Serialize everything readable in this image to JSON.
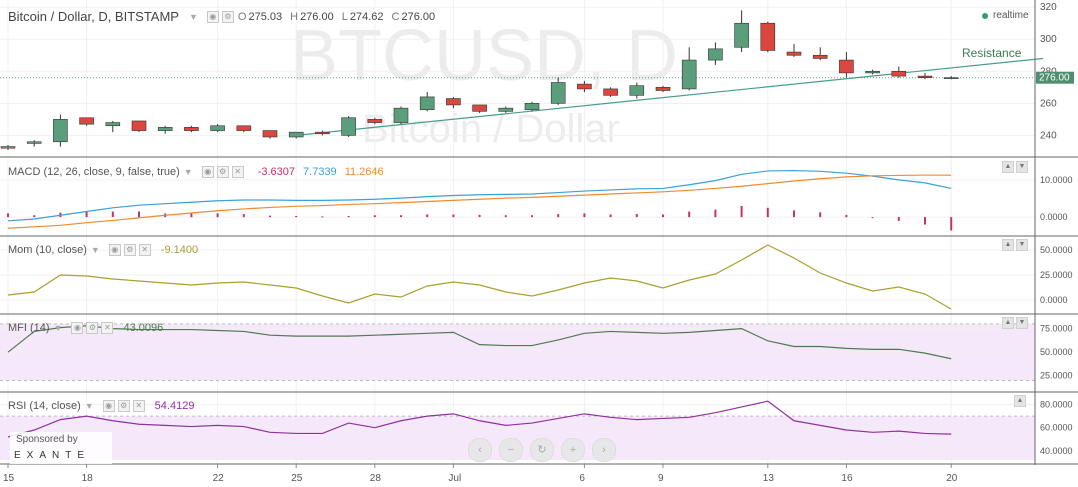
{
  "header": {
    "symbol": "Bitcoin / Dollar, D, BITSTAMP",
    "ohlc": [
      {
        "label": "O",
        "value": "275.03"
      },
      {
        "label": "H",
        "value": "276.00"
      },
      {
        "label": "L",
        "value": "274.62"
      },
      {
        "label": "C",
        "value": "276.00"
      }
    ],
    "realtime_label": "realtime"
  },
  "watermark": {
    "line1": "BTCUSD, D",
    "line2": "Bitcoin / Dollar"
  },
  "sponsor": {
    "line1": "Sponsored by",
    "line2": "EXANTE"
  },
  "nav_buttons": [
    "‹",
    "−",
    "↻",
    "+",
    "›"
  ],
  "colors": {
    "up": "#5b9e7c",
    "down": "#d9473f",
    "trendline": "#4a9c8e",
    "macd": "#3aa0d8",
    "signal": "#f08a30",
    "hist": "#c8306a",
    "mom": "#a8a030",
    "mfi": "#4f7a4f",
    "rsi": "#9030a0",
    "band_fill": "#f6e8fb"
  },
  "chart_data": [
    {
      "type": "candlestick",
      "title": "Bitcoin / Dollar, D, BITSTAMP",
      "x_ticks": [
        "15",
        "18",
        "22",
        "25",
        "28",
        "Jul",
        "6",
        "9",
        "13",
        "16",
        "20"
      ],
      "y_ticks": [
        240,
        260,
        280,
        300,
        320
      ],
      "ylim": [
        229,
        322
      ],
      "last_price": "276.00",
      "candles": [
        {
          "o": 232,
          "h": 234,
          "l": 231,
          "c": 233
        },
        {
          "o": 235,
          "h": 237,
          "l": 233,
          "c": 236
        },
        {
          "o": 236,
          "h": 253,
          "l": 233,
          "c": 250
        },
        {
          "o": 251,
          "h": 251,
          "l": 246,
          "c": 247
        },
        {
          "o": 246,
          "h": 249,
          "l": 242,
          "c": 248
        },
        {
          "o": 249,
          "h": 249,
          "l": 242,
          "c": 243
        },
        {
          "o": 243,
          "h": 246,
          "l": 241,
          "c": 245
        },
        {
          "o": 245,
          "h": 246,
          "l": 242,
          "c": 243
        },
        {
          "o": 243,
          "h": 247,
          "l": 242,
          "c": 246
        },
        {
          "o": 246,
          "h": 246,
          "l": 242,
          "c": 243
        },
        {
          "o": 243,
          "h": 243,
          "l": 238,
          "c": 239
        },
        {
          "o": 239,
          "h": 242,
          "l": 238,
          "c": 242
        },
        {
          "o": 242,
          "h": 243,
          "l": 240,
          "c": 241
        },
        {
          "o": 240,
          "h": 252,
          "l": 239,
          "c": 251
        },
        {
          "o": 250,
          "h": 251,
          "l": 247,
          "c": 248
        },
        {
          "o": 248,
          "h": 258,
          "l": 247,
          "c": 257
        },
        {
          "o": 256,
          "h": 267,
          "l": 255,
          "c": 264
        },
        {
          "o": 263,
          "h": 264,
          "l": 257,
          "c": 259
        },
        {
          "o": 259,
          "h": 259,
          "l": 254,
          "c": 255
        },
        {
          "o": 255,
          "h": 258,
          "l": 254,
          "c": 257
        },
        {
          "o": 256,
          "h": 261,
          "l": 255,
          "c": 260
        },
        {
          "o": 260,
          "h": 276,
          "l": 259,
          "c": 273
        },
        {
          "o": 272,
          "h": 274,
          "l": 267,
          "c": 269
        },
        {
          "o": 269,
          "h": 270,
          "l": 264,
          "c": 265
        },
        {
          "o": 265,
          "h": 273,
          "l": 263,
          "c": 271
        },
        {
          "o": 270,
          "h": 271,
          "l": 267,
          "c": 268
        },
        {
          "o": 269,
          "h": 295,
          "l": 268,
          "c": 287
        },
        {
          "o": 287,
          "h": 298,
          "l": 284,
          "c": 294
        },
        {
          "o": 295,
          "h": 318,
          "l": 292,
          "c": 310
        },
        {
          "o": 310,
          "h": 311,
          "l": 292,
          "c": 293
        },
        {
          "o": 292,
          "h": 297,
          "l": 289,
          "c": 290
        },
        {
          "o": 290,
          "h": 295,
          "l": 287,
          "c": 288
        },
        {
          "o": 287,
          "h": 292,
          "l": 276,
          "c": 279
        },
        {
          "o": 279,
          "h": 281,
          "l": 278,
          "c": 280
        },
        {
          "o": 280,
          "h": 283,
          "l": 276,
          "c": 277
        },
        {
          "o": 277,
          "h": 279,
          "l": 275,
          "c": 276
        },
        {
          "o": 276,
          "h": 277,
          "l": 275,
          "c": 276
        }
      ],
      "trendline": {
        "label": "Resistance",
        "from": {
          "index": 11,
          "value": 240
        },
        "to": {
          "index": 39.5,
          "value": 288
        }
      }
    },
    {
      "type": "line",
      "title": "MACD (12, 26, close, 9, false, true)",
      "values_text": [
        "-3.6307",
        "7.7339",
        "11.2646"
      ],
      "y_ticks": [
        0,
        10
      ],
      "y_tick_labels": [
        "0.0000",
        "10.0000"
      ],
      "ylim": [
        -4,
        14
      ],
      "series": [
        {
          "values": [
            -1,
            -0.5,
            0.5,
            1.5,
            2.5,
            3.2,
            3.6,
            4,
            4.4,
            4.6,
            4.6,
            4.5,
            4.5,
            4.6,
            4.8,
            5.1,
            5.5,
            5.8,
            6,
            6.1,
            6.2,
            6.6,
            7,
            7.3,
            7.6,
            7.7,
            8.7,
            9.8,
            11.5,
            12.4,
            12.5,
            12.3,
            11.8,
            11,
            10,
            9.2,
            7.7
          ]
        },
        {
          "values": [
            -3,
            -2.6,
            -2.2,
            -1.5,
            -0.9,
            -0.2,
            0.5,
            1.1,
            1.7,
            2.2,
            2.6,
            2.9,
            3.1,
            3.4,
            3.6,
            3.9,
            4.2,
            4.5,
            4.8,
            5.1,
            5.3,
            5.6,
            5.9,
            6.2,
            6.5,
            6.8,
            7.2,
            7.7,
            8.3,
            9,
            9.7,
            10.3,
            10.8,
            11.1,
            11.2,
            11.3,
            11.2646
          ]
        }
      ],
      "histogram": [
        1,
        0.5,
        1.2,
        1.5,
        1.5,
        1.5,
        1,
        1,
        1,
        0.8,
        0.4,
        0.3,
        0.2,
        0.3,
        0.5,
        0.5,
        0.7,
        0.7,
        0.6,
        0.5,
        0.5,
        0.8,
        1,
        0.7,
        0.8,
        0.7,
        1.5,
        2,
        3,
        2.5,
        1.8,
        1.3,
        0.6,
        0,
        -1,
        -2,
        -3.6
      ]
    },
    {
      "type": "line",
      "title": "Mom (10, close)",
      "values_text": [
        "-9.1400"
      ],
      "y_ticks": [
        0,
        25,
        50
      ],
      "y_tick_labels": [
        "0.0000",
        "25.0000",
        "50.0000"
      ],
      "ylim": [
        -10,
        56
      ],
      "series": [
        {
          "values": [
            5,
            8,
            25,
            24,
            21,
            19,
            17,
            15,
            17,
            18,
            15,
            12,
            4,
            -3,
            6,
            3,
            14,
            18,
            15,
            8,
            4,
            10,
            17,
            22,
            19,
            12,
            20,
            26,
            40,
            55,
            42,
            27,
            17,
            9,
            13,
            6,
            -9.14
          ]
        }
      ]
    },
    {
      "type": "line",
      "title": "MFI (14)",
      "values_text": [
        "43.0096"
      ],
      "y_ticks": [
        25,
        50,
        75
      ],
      "y_tick_labels": [
        "25.0000",
        "50.0000",
        "75.0000"
      ],
      "ylim": [
        12,
        82
      ],
      "band": [
        20,
        80
      ],
      "series": [
        {
          "values": [
            50,
            72,
            76,
            78,
            75,
            74,
            74,
            74,
            73,
            72,
            68,
            67,
            67,
            67,
            68,
            69,
            70,
            71,
            58,
            57,
            57,
            63,
            70,
            72,
            71,
            70,
            71,
            73,
            75,
            62,
            56,
            56,
            54,
            53,
            53,
            49,
            43.0096
          ]
        }
      ]
    },
    {
      "type": "line",
      "title": "RSI (14, close)",
      "values_text": [
        "54.4129"
      ],
      "y_ticks": [
        40,
        60,
        80
      ],
      "y_tick_labels": [
        "40.0000",
        "60.0000",
        "80.0000"
      ],
      "ylim": [
        32,
        84
      ],
      "band": [
        30,
        70
      ],
      "series": [
        {
          "values": [
            52,
            58,
            67,
            70,
            66,
            63,
            62,
            61,
            62,
            61,
            56,
            55,
            55,
            64,
            60,
            66,
            70,
            72,
            66,
            62,
            64,
            68,
            72,
            69,
            67,
            68,
            69,
            73,
            78,
            83,
            66,
            62,
            58,
            56,
            57,
            55,
            54.41
          ]
        }
      ]
    }
  ],
  "indicator_headers": {
    "macd": {
      "title": "MACD (12, 26, close, 9, false, true)",
      "v1": "-3.6307",
      "v2": "7.7339",
      "v3": "11.2646"
    },
    "mom": {
      "title": "Mom (10, close)",
      "v1": "-9.1400"
    },
    "mfi": {
      "title": "MFI (14)",
      "v1": "43.0096"
    },
    "rsi": {
      "title": "RSI (14, close)",
      "v1": "54.4129"
    }
  }
}
